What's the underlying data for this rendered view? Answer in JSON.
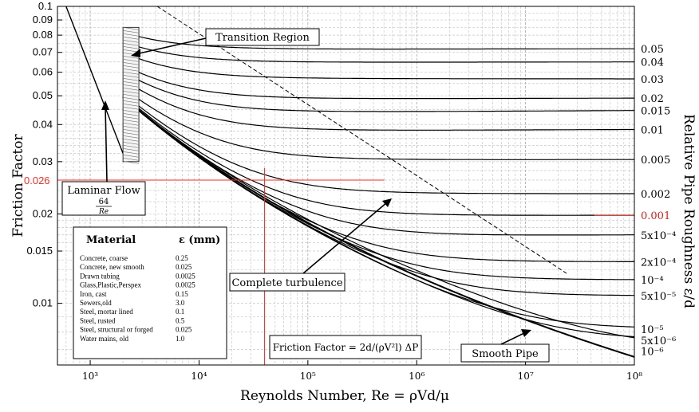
{
  "chart_data": {
    "type": "line",
    "xscale": "log",
    "yscale": "log",
    "xlim": [
      500,
      100000000
    ],
    "ylim": [
      0.0062,
      0.1
    ],
    "xlabel": "Reynolds Number, Re = ρVd/μ",
    "ylabel": "Friction Factor",
    "right_label": "Relative Pipe Roughness ε/d",
    "x_ticks": [
      {
        "value": 1000,
        "label": "10³"
      },
      {
        "value": 10000,
        "label": "10⁴"
      },
      {
        "value": 100000,
        "label": "10⁵"
      },
      {
        "value": 1000000,
        "label": "10⁶"
      },
      {
        "value": 10000000,
        "label": "10⁷"
      },
      {
        "value": 100000000,
        "label": "10⁸"
      }
    ],
    "y_ticks": [
      {
        "value": 0.1,
        "label": "0.1"
      },
      {
        "value": 0.09,
        "label": "0.09"
      },
      {
        "value": 0.08,
        "label": "0.08"
      },
      {
        "value": 0.07,
        "label": "0.07"
      },
      {
        "value": 0.06,
        "label": "0.06"
      },
      {
        "value": 0.05,
        "label": "0.05"
      },
      {
        "value": 0.04,
        "label": "0.04"
      },
      {
        "value": 0.03,
        "label": "0.03"
      },
      {
        "value": 0.02,
        "label": "0.02"
      },
      {
        "value": 0.015,
        "label": "0.015"
      },
      {
        "value": 0.01,
        "label": "0.01"
      }
    ],
    "grid": true,
    "series": [
      {
        "name": "0.05",
        "values": [
          0.071,
          0.072
        ]
      },
      {
        "name": "0.04",
        "values": [
          0.0644,
          0.065
        ]
      },
      {
        "name": "0.03",
        "values": [
          0.0568,
          0.057
        ]
      },
      {
        "name": "0.02",
        "values": [
          0.049,
          0.0491
        ]
      },
      {
        "name": "0.015",
        "values": [
          0.0444,
          0.0446
        ]
      },
      {
        "name": "0.01",
        "values": [
          0.0382,
          0.0385
        ]
      },
      {
        "name": "0.005",
        "values": [
          0.0304,
          0.0305
        ]
      },
      {
        "name": "0.002",
        "values": [
          0.0235,
          0.0234
        ]
      },
      {
        "name": "0.001",
        "values": [
          0.0201,
          0.0198
        ]
      },
      {
        "name": "5x10⁻⁴",
        "values": [
          0.0174,
          0.017
        ]
      },
      {
        "name": "2x10⁻⁴",
        "values": [
          0.0143,
          0.0138
        ]
      },
      {
        "name": "10⁻⁴",
        "values": [
          0.0125,
          0.012
        ]
      },
      {
        "name": "5x10⁻⁵",
        "values": [
          0.0112,
          0.0106
        ]
      },
      {
        "name": "10⁻⁵",
        "values": [
          0.009,
          0.0082
        ]
      },
      {
        "name": "5x10⁻⁶",
        "values": [
          0.0085,
          0.0075
        ]
      },
      {
        "name": "10⁻⁶",
        "values": [
          0.008,
          0.0069
        ]
      }
    ],
    "laminar_flow": {
      "label": "Laminar Flow",
      "formula_num": "64",
      "formula_den": "Re",
      "x": [
        600,
        2000
      ],
      "y": [
        0.1,
        0.032
      ]
    },
    "highlight": {
      "value": 0.026,
      "label": "0.026",
      "color": "#e8302a",
      "x": 40000
    },
    "annotations": {
      "transition_region": "Transition Region",
      "complete_turbulence": "Complete turbulence",
      "smooth_pipe": "Smooth Pipe",
      "friction_factor_formula": "Friction Factor = 2d/(ρV²l) ΔP"
    },
    "material_table": {
      "header_material": "Material",
      "header_roughness": "ε (mm)",
      "rows": [
        {
          "material": "Concrete, coarse",
          "roughness": "0.25"
        },
        {
          "material": "Concrete, new smooth",
          "roughness": "0.025"
        },
        {
          "material": "Drawn tubing",
          "roughness": "0.0025"
        },
        {
          "material": "Glass,Plastic,Perspex",
          "roughness": "0.0025"
        },
        {
          "material": "Iron, cast",
          "roughness": "0.15"
        },
        {
          "material": "Sewers,old",
          "roughness": "3.0"
        },
        {
          "material": "Steel, mortar lined",
          "roughness": "0.1"
        },
        {
          "material": "Steel, rusted",
          "roughness": "0.5"
        },
        {
          "material": "Steel, structural or forged",
          "roughness": "0.025"
        },
        {
          "material": "Water mains, old",
          "roughness": "1.0"
        }
      ]
    }
  }
}
